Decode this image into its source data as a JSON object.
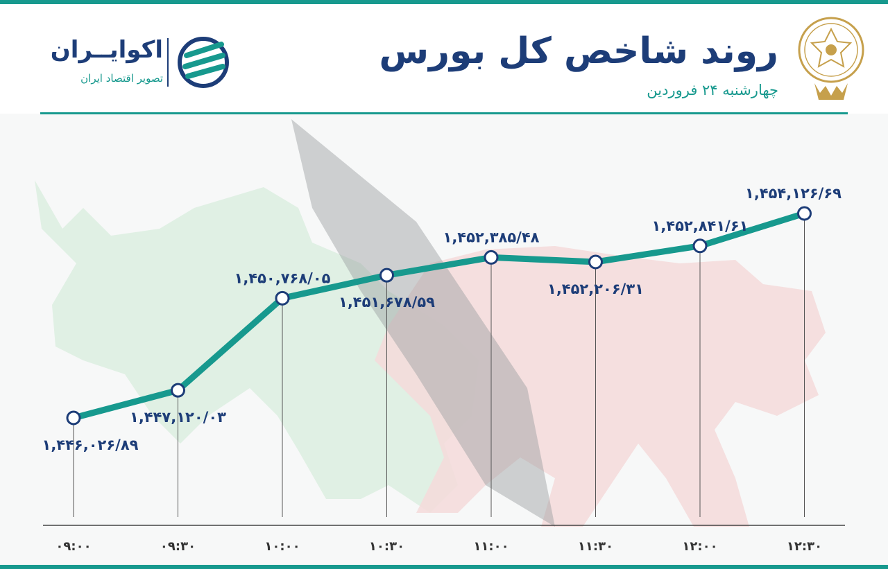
{
  "header": {
    "title": "روند شاخص کل بورس",
    "subtitle": "چهارشنبه ۲۴ فروردین"
  },
  "brand": {
    "name": "اکوایــران",
    "tagline": "تصویر اقتصاد ایران"
  },
  "colors": {
    "accent": "#17998e",
    "navy": "#1d3d78",
    "gold": "#c6a04c",
    "bull": "#dcefe0",
    "bear": "#f4dada"
  },
  "chart_data": {
    "type": "line",
    "x": [
      "۰۹:۰۰",
      "۰۹:۳۰",
      "۱۰:۰۰",
      "۱۰:۳۰",
      "۱۱:۰۰",
      "۱۱:۳۰",
      "۱۲:۰۰",
      "۱۲:۳۰"
    ],
    "values": [
      1446026.89,
      1447120.03,
      1450768.05,
      1451678.59,
      1452385.48,
      1452206.31,
      1452841.61,
      1454126.69
    ],
    "value_labels": [
      "۱,۴۴۶,۰۲۶/۸۹",
      "۱,۴۴۷,۱۲۰/۰۳",
      "۱,۴۵۰,۷۶۸/۰۵",
      "۱,۴۵۱,۶۷۸/۵۹",
      "۱,۴۵۲,۳۸۵/۴۸",
      "۱,۴۵۲,۲۰۶/۳۱",
      "۱,۴۵۲,۸۴۱/۶۱",
      "۱,۴۵۴,۱۲۶/۶۹"
    ],
    "label_side": [
      "below",
      "below",
      "above",
      "below",
      "above",
      "below",
      "above",
      "above"
    ],
    "title": "روند شاخص کل بورس",
    "xlabel": "",
    "ylabel": "",
    "grid": false
  }
}
